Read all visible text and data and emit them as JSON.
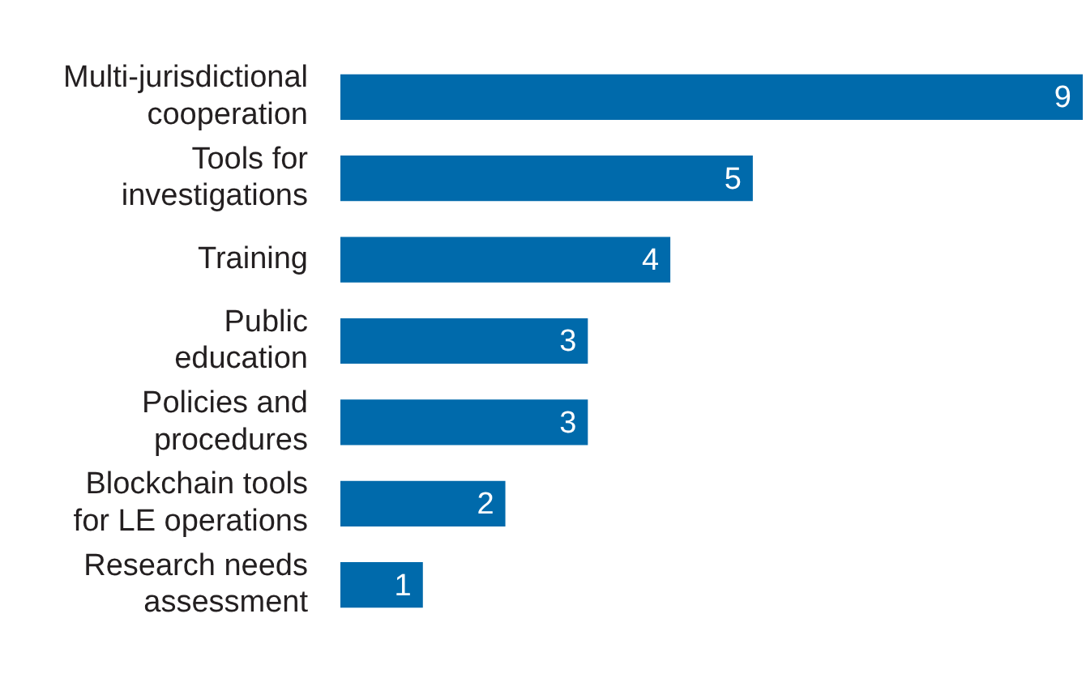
{
  "chart_data": {
    "type": "bar",
    "orientation": "horizontal",
    "categories": [
      "Multi-jurisdictional\ncooperation",
      "Tools for\ninvestigations",
      "Training",
      "Public\neducation",
      "Policies and\nprocedures",
      "Blockchain tools\nfor LE operations",
      "Research needs\nassessment"
    ],
    "values": [
      9,
      5,
      4,
      3,
      3,
      2,
      1
    ],
    "color": "#006aab",
    "xlim": [
      0,
      9
    ],
    "data_labels": true
  }
}
